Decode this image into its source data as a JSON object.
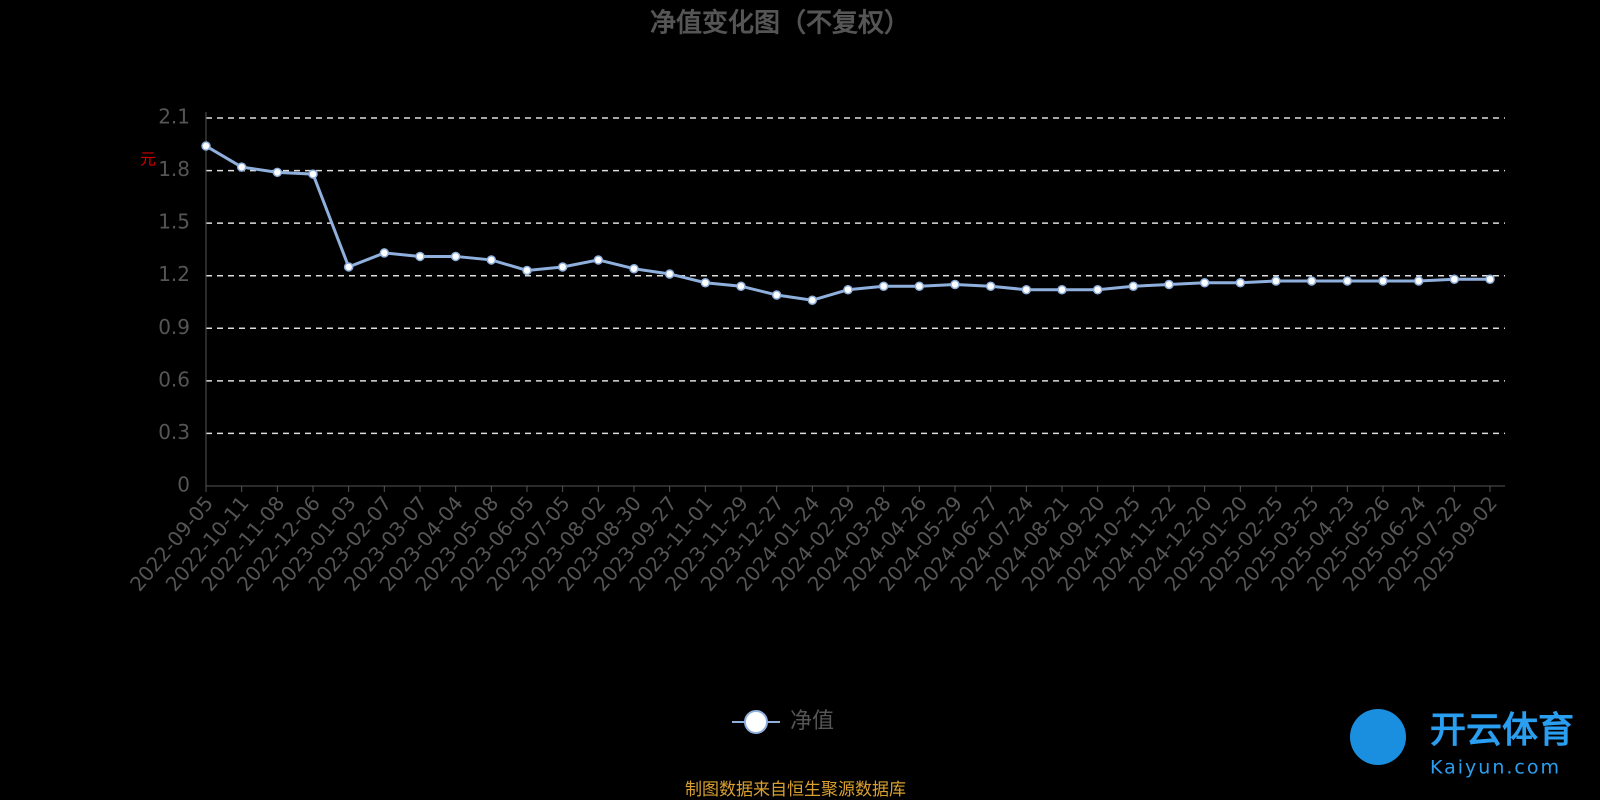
{
  "chart_data": {
    "type": "line",
    "title": "净值变化图（不复权）",
    "y_label": "元",
    "categories": [
      "2022-09-05",
      "2022-10-11",
      "2022-11-08",
      "2022-12-06",
      "2023-01-03",
      "2023-02-07",
      "2023-03-07",
      "2023-04-04",
      "2023-05-08",
      "2023-06-05",
      "2023-07-05",
      "2023-08-02",
      "2023-08-30",
      "2023-09-27",
      "2023-11-01",
      "2023-11-29",
      "2023-12-27",
      "2024-01-24",
      "2024-02-29",
      "2024-03-28",
      "2024-04-26",
      "2024-05-29",
      "2024-06-27",
      "2024-07-24",
      "2024-08-21",
      "2024-09-20",
      "2024-10-25",
      "2024-11-22",
      "2024-12-20",
      "2025-01-20",
      "2025-02-25",
      "2025-03-25",
      "2025-04-23",
      "2025-05-26",
      "2025-06-24",
      "2025-07-22",
      "2025-09-02"
    ],
    "series": [
      {
        "name": "净值",
        "color": "#8fb0dd",
        "values": [
          1.94,
          1.82,
          1.79,
          1.78,
          1.25,
          1.33,
          1.31,
          1.31,
          1.29,
          1.23,
          1.25,
          1.29,
          1.24,
          1.21,
          1.16,
          1.14,
          1.09,
          1.06,
          1.12,
          1.14,
          1.14,
          1.15,
          1.14,
          1.12,
          1.12,
          1.12,
          1.14,
          1.15,
          1.16,
          1.16,
          1.17,
          1.17,
          1.17,
          1.17,
          1.17,
          1.18,
          1.18
        ]
      }
    ],
    "ylim": [
      0,
      2.1
    ],
    "yticks": [
      0,
      0.3,
      0.6,
      0.9,
      1.2,
      1.5,
      1.8,
      2.1
    ],
    "grid": true,
    "source": "制图数据来自恒生聚源数据库",
    "watermark": {
      "name": "开云体育",
      "url": "Kaiyun.com"
    }
  }
}
